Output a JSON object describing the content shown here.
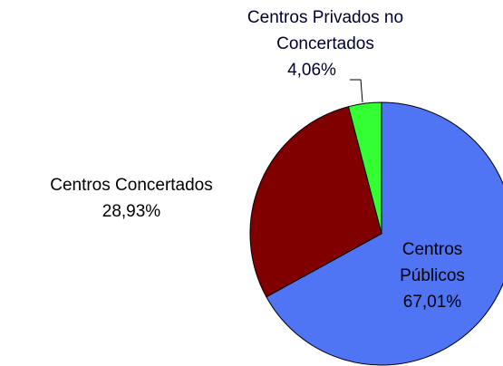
{
  "chart_data": {
    "type": "pie",
    "categories": [
      "Centros Públicos",
      "Centros Concertados",
      "Centros Privados no Concertados"
    ],
    "values": [
      67.01,
      28.93,
      4.06
    ],
    "value_labels": [
      "67,01%",
      "28,93%",
      "4,06%"
    ],
    "colors": [
      "#4f74f4",
      "#800000",
      "#33ff33"
    ]
  }
}
